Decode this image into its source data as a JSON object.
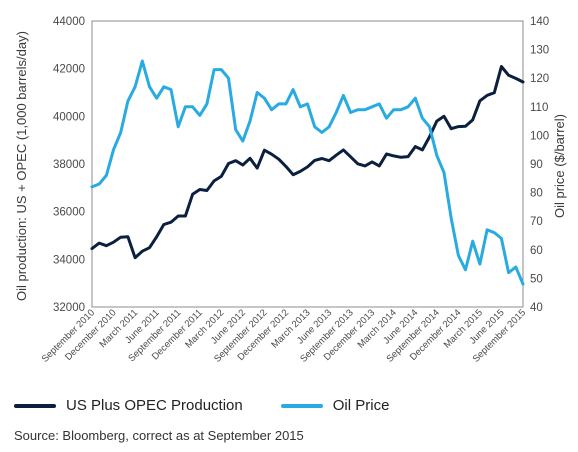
{
  "chart_data": {
    "type": "line",
    "xlabels": [
      "September 2010",
      "December 2010",
      "March 2011",
      "June 2011",
      "September 2011",
      "December 2011",
      "March 2012",
      "June 2012",
      "September 2012",
      "December 2012",
      "March 2013",
      "June 2013",
      "September 2013",
      "December 2013",
      "March 2014",
      "June 2014",
      "September 2014",
      "December 2014",
      "March 2015",
      "June 2015",
      "September 2015"
    ],
    "ylabel_left": "Oil production: US + OPEC (1,000 barrels/day)",
    "ylabel_right": "Oil price ($/barrel)",
    "ylim_left": [
      32000,
      44000
    ],
    "yticks_left": [
      32000,
      34000,
      36000,
      38000,
      40000,
      42000,
      44000
    ],
    "ytick_labels_left": [
      "32000",
      "34000",
      "36000",
      "38000",
      "40000",
      "42000",
      "44000"
    ],
    "ylim_right": [
      40,
      140
    ],
    "yticks_right": [
      40,
      50,
      60,
      70,
      80,
      90,
      100,
      110,
      120,
      130,
      140
    ],
    "ytick_labels_right": [
      "40",
      "50",
      "60",
      "70",
      "80",
      "90",
      "100",
      "110",
      "120",
      "130",
      "140"
    ],
    "grid": false,
    "series": [
      {
        "name": "US Plus OPEC Production",
        "axis": "left",
        "color": "#0b1f3f",
        "values": [
          34450,
          34680,
          34570,
          34720,
          34930,
          34950,
          34070,
          34340,
          34490,
          34950,
          35460,
          35560,
          35820,
          35820,
          36730,
          36930,
          36890,
          37290,
          37480,
          38020,
          38140,
          37960,
          38240,
          37830,
          38580,
          38410,
          38200,
          37900,
          37550,
          37690,
          37880,
          38150,
          38230,
          38140,
          38370,
          38590,
          38300,
          38010,
          37920,
          38090,
          37920,
          38420,
          38340,
          38280,
          38310,
          38730,
          38590,
          39150,
          39800,
          40000,
          39480,
          39570,
          39580,
          39850,
          40650,
          40880,
          40990,
          42090,
          41720,
          41590,
          41440
        ]
      },
      {
        "name": "Oil Price",
        "axis": "right",
        "color": "#29abe2",
        "values": [
          82,
          83,
          86,
          95,
          101,
          112,
          117,
          126,
          117,
          113,
          117,
          116,
          103,
          110,
          110,
          107,
          111,
          123,
          123,
          120,
          102,
          98,
          105,
          115,
          113,
          109,
          111,
          111,
          116,
          110,
          111,
          103,
          101,
          103,
          108,
          114,
          108,
          109,
          109,
          110,
          111,
          106,
          109,
          109,
          110,
          113,
          106,
          103,
          93,
          87,
          71,
          58,
          53,
          63,
          55,
          67,
          66,
          64,
          52,
          54,
          48
        ]
      }
    ]
  },
  "legend": {
    "production": "US Plus OPEC Production",
    "price": "Oil Price"
  },
  "source": "Source: Bloomberg, correct as at September 2015"
}
